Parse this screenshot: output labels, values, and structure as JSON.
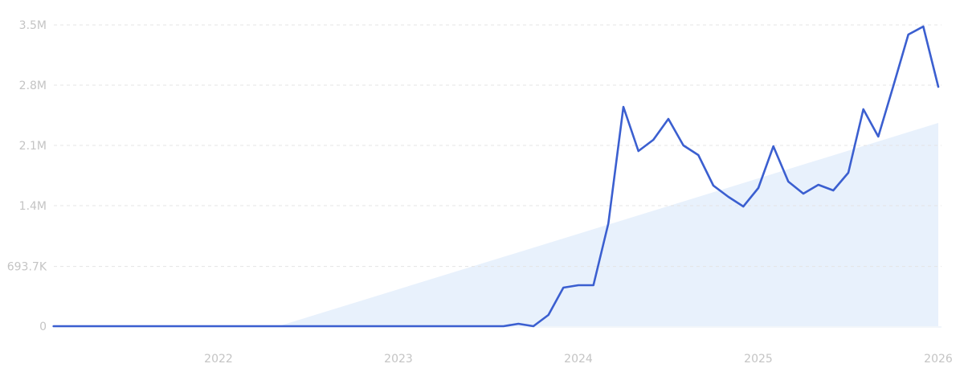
{
  "chart_data": {
    "type": "line",
    "title": "",
    "xlabel": "",
    "ylabel": "",
    "ylim": [
      0,
      3500000
    ],
    "grid": true,
    "legend": "none",
    "y_ticks": [
      {
        "value": 0,
        "label": "0"
      },
      {
        "value": 693700,
        "label": "693.7K"
      },
      {
        "value": 1400000,
        "label": "1.4M"
      },
      {
        "value": 2100000,
        "label": "2.1M"
      },
      {
        "value": 2800000,
        "label": "2.8M"
      },
      {
        "value": 3500000,
        "label": "3.5M"
      }
    ],
    "x_ticks": [
      {
        "value": "2022-01",
        "label": "2022"
      },
      {
        "value": "2023-01",
        "label": "2023"
      },
      {
        "value": "2024-01",
        "label": "2024"
      },
      {
        "value": "2025-01",
        "label": "2025"
      },
      {
        "value": "2026-01",
        "label": "2026"
      }
    ],
    "x": [
      "2021-02",
      "2021-03",
      "2021-04",
      "2021-05",
      "2021-06",
      "2021-07",
      "2021-08",
      "2021-09",
      "2021-10",
      "2021-11",
      "2021-12",
      "2022-01",
      "2022-02",
      "2022-03",
      "2022-04",
      "2022-05",
      "2022-06",
      "2022-07",
      "2022-08",
      "2022-09",
      "2022-10",
      "2022-11",
      "2022-12",
      "2023-01",
      "2023-02",
      "2023-03",
      "2023-04",
      "2023-05",
      "2023-06",
      "2023-07",
      "2023-08",
      "2023-09",
      "2023-10",
      "2023-11",
      "2023-12",
      "2024-01",
      "2024-02",
      "2024-03",
      "2024-04",
      "2024-05",
      "2024-06",
      "2024-07",
      "2024-08",
      "2024-09",
      "2024-10",
      "2024-11",
      "2024-12",
      "2025-01",
      "2025-02",
      "2025-03",
      "2025-04",
      "2025-05",
      "2025-06",
      "2025-07",
      "2025-08",
      "2025-09",
      "2025-10",
      "2025-11",
      "2025-12",
      "2026-01"
    ],
    "series": [
      {
        "values": [
          0,
          0,
          0,
          0,
          0,
          0,
          0,
          0,
          0,
          0,
          0,
          0,
          0,
          0,
          0,
          0,
          0,
          0,
          0,
          0,
          0,
          0,
          0,
          0,
          0,
          0,
          0,
          0,
          0,
          0,
          0,
          28000,
          0,
          131000,
          448000,
          476000,
          476000,
          1195000,
          2548000,
          2035000,
          2165000,
          2408000,
          2100000,
          1988000,
          1633000,
          1503000,
          1391000,
          1605000,
          2090000,
          1680000,
          1540000,
          1643000,
          1577000,
          1783000,
          2520000,
          2203000,
          2790000,
          3388000,
          3481000,
          2781000
        ]
      }
    ],
    "trend": {
      "type": "area",
      "start": "2022-05",
      "start_value": 0,
      "end": "2026-01",
      "end_value": 2361000
    },
    "colors": {
      "line": "#3b5fd0",
      "trend_fill": "#e8f1fc",
      "grid": "#e4e4e4",
      "tick_text": "#c4c4c4"
    }
  }
}
